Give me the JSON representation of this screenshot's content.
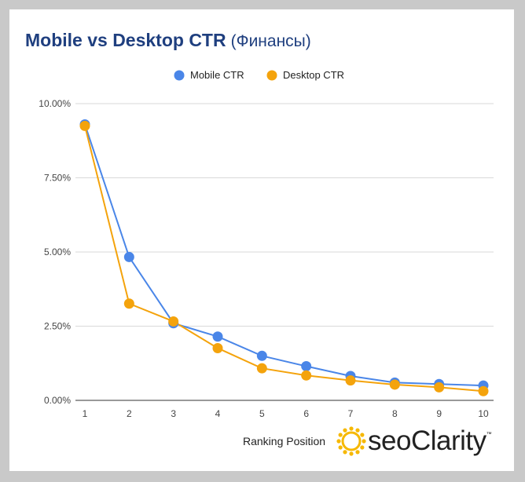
{
  "chart_data": {
    "type": "line",
    "title": "Mobile vs Desktop CTR",
    "subtitle": "(Финансы)",
    "xlabel": "Ranking Position",
    "ylabel": "",
    "categories": [
      "1",
      "2",
      "3",
      "4",
      "5",
      "6",
      "7",
      "8",
      "9",
      "10"
    ],
    "yticks": [
      "0.00%",
      "2.50%",
      "5.00%",
      "7.50%",
      "10.00%"
    ],
    "ylim": [
      0,
      10
    ],
    "grid": true,
    "legend_position": "top",
    "series": [
      {
        "name": "Mobile CTR",
        "color": "#4a86e8",
        "values": [
          9.3,
          4.83,
          2.6,
          2.15,
          1.5,
          1.15,
          0.82,
          0.6,
          0.55,
          0.5
        ]
      },
      {
        "name": "Desktop CTR",
        "color": "#f4a30c",
        "values": [
          9.25,
          3.26,
          2.66,
          1.76,
          1.08,
          0.84,
          0.67,
          0.53,
          0.44,
          0.31
        ]
      }
    ]
  },
  "brand": {
    "logo_prefix": "seo",
    "logo_suffix": "Clarity",
    "trademark": "™",
    "colors": {
      "logo_mark": "#f6b800",
      "text": "#222222"
    }
  }
}
